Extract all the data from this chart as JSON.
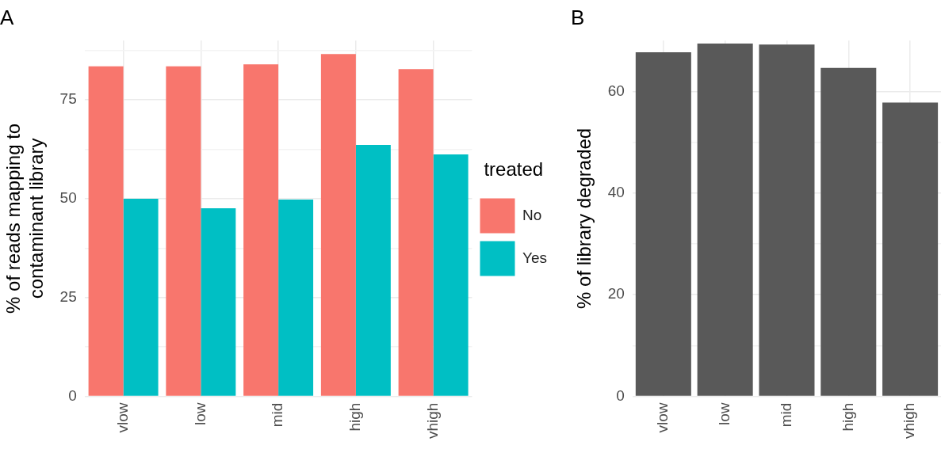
{
  "chart_data": [
    {
      "type": "bar",
      "title": "A",
      "categories": [
        "vlow",
        "low",
        "mid",
        "high",
        "vhigh"
      ],
      "ylabel": "% of reads mapping to\ncontaminant library",
      "legend_title": "treated",
      "legend": "right",
      "grid": true,
      "series": [
        {
          "name": "No",
          "color": "#f8766d",
          "values": [
            83.5,
            83.5,
            84.0,
            86.6,
            82.8
          ]
        },
        {
          "name": "Yes",
          "color": "#00bfc4",
          "values": [
            50.0,
            47.6,
            49.8,
            63.6,
            61.2
          ]
        }
      ],
      "ylim": [
        0,
        90
      ],
      "yticks": [
        0,
        {
          "value": 12.5,
          "label": null
        },
        25,
        {
          "value": 37.5,
          "label": null
        },
        50,
        {
          "value": 62.5,
          "label": null
        },
        75,
        {
          "value": 87.5,
          "label": null
        }
      ]
    },
    {
      "type": "bar",
      "title": "B",
      "categories": [
        "vlow",
        "low",
        "mid",
        "high",
        "vhigh"
      ],
      "ylabel": "% of library degraded",
      "grid": true,
      "series": [
        {
          "color": "#595959",
          "values": [
            67.7,
            69.4,
            69.2,
            64.6,
            57.8
          ]
        }
      ],
      "ylim": [
        0,
        70
      ],
      "yticks": [
        0,
        {
          "value": 10,
          "label": null
        },
        20,
        {
          "value": 30,
          "label": null
        },
        40,
        {
          "value": 50,
          "label": null
        },
        60
      ]
    }
  ]
}
